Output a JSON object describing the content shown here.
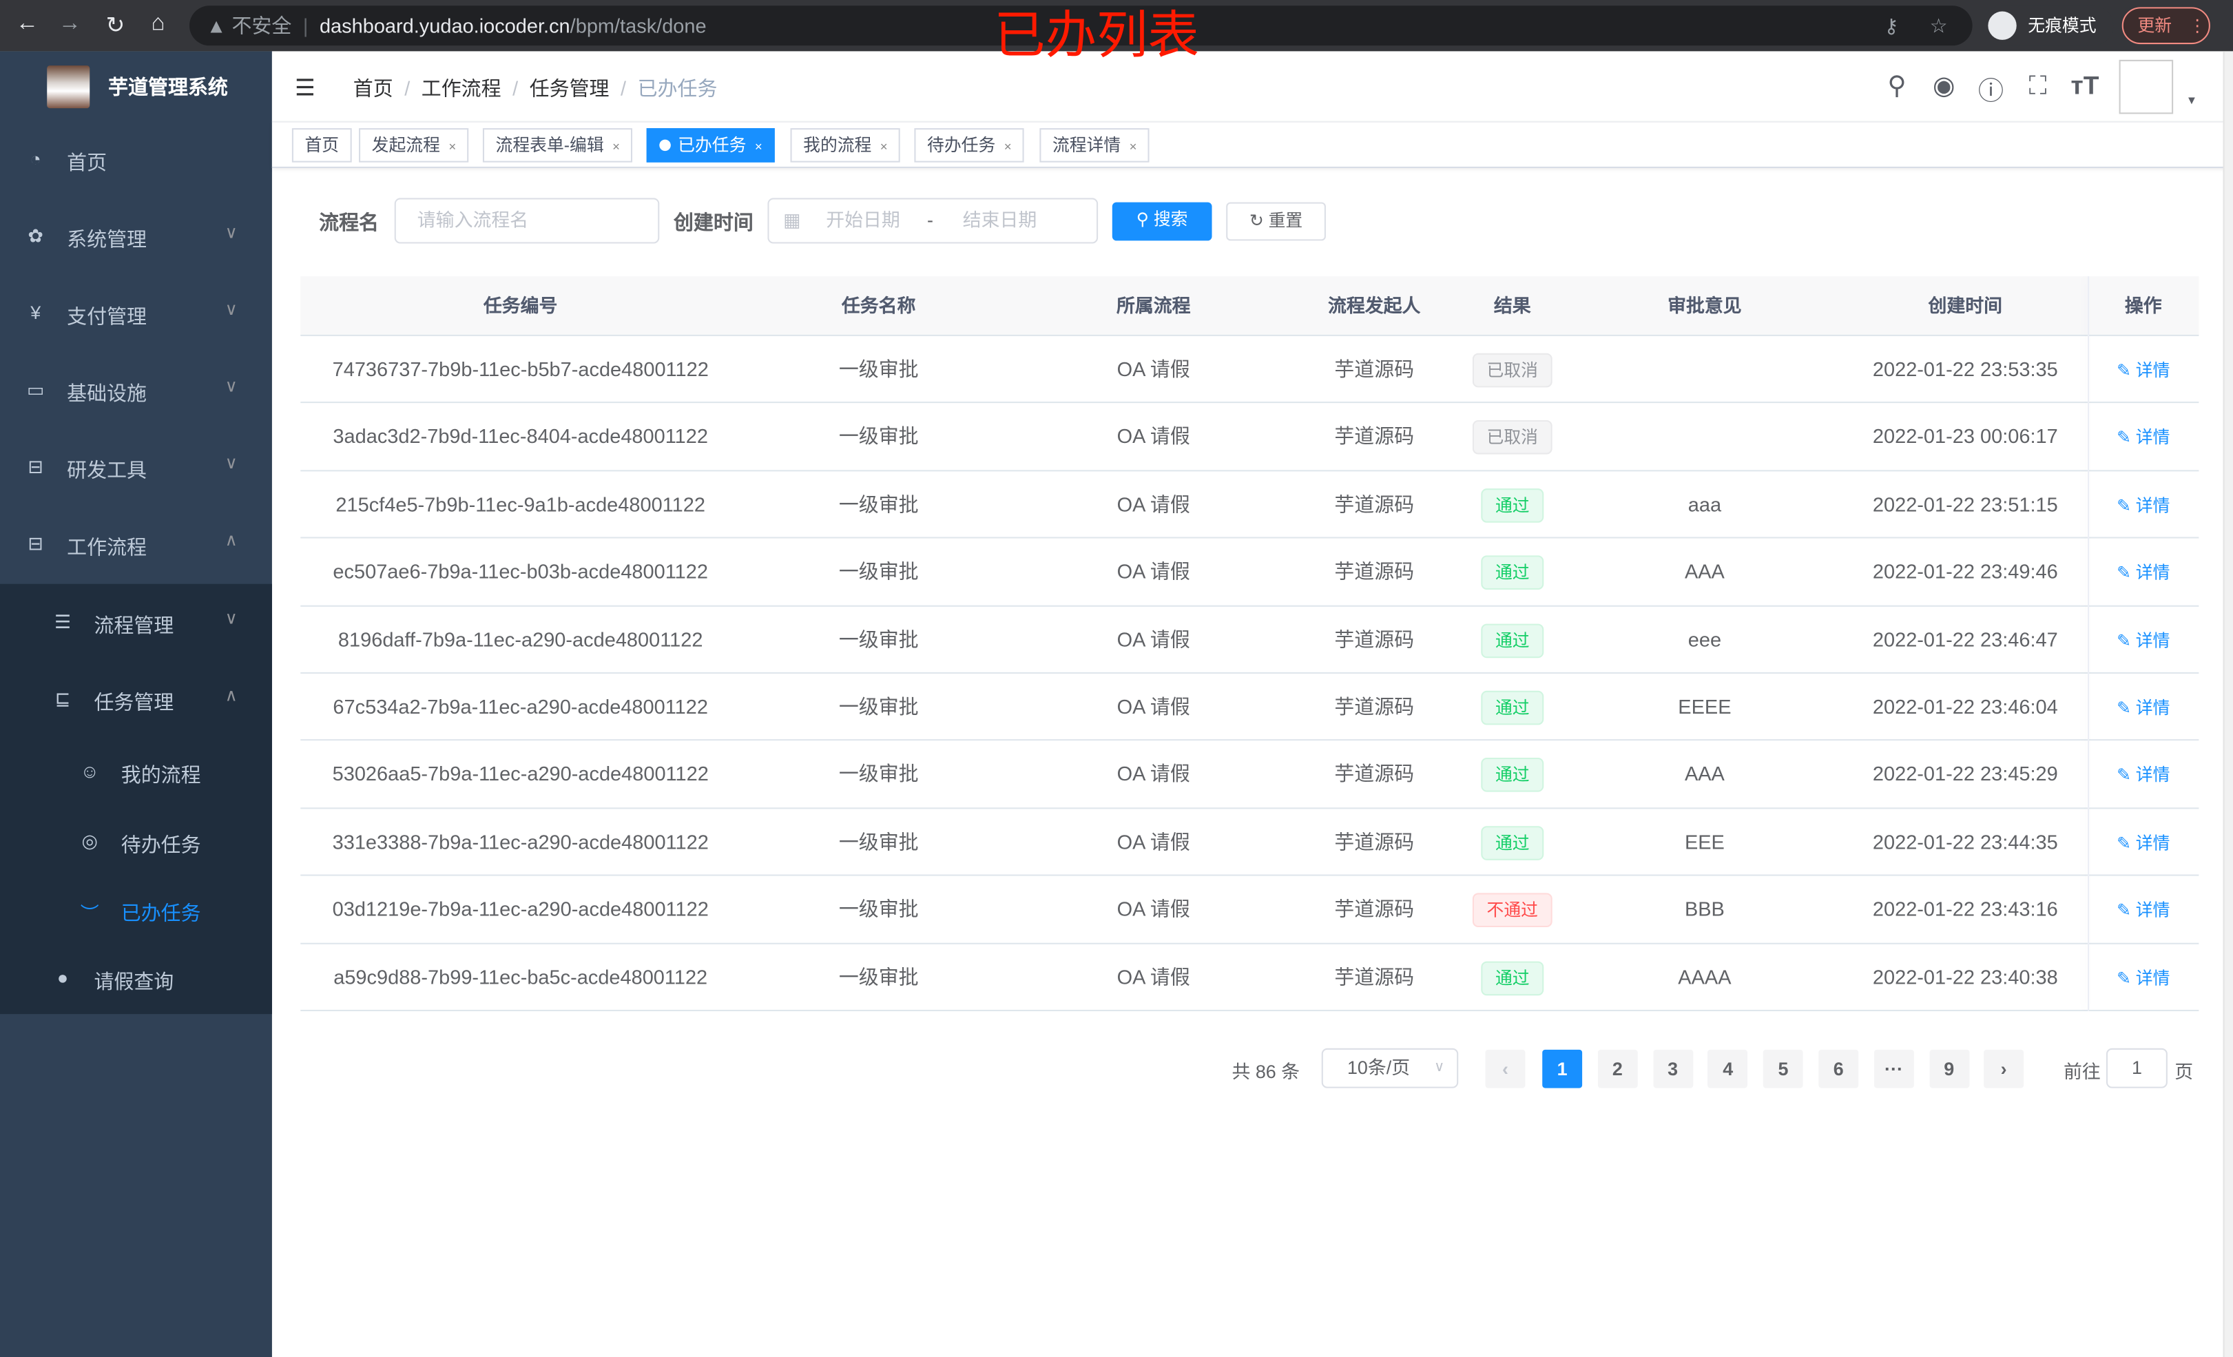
{
  "browser": {
    "insecure": "不安全",
    "url_host": "dashboard.yudao.iocoder.cn",
    "url_path": "/bpm/task/done",
    "incognito": "无痕模式",
    "update": "更新",
    "nav_icons": [
      "back-icon",
      "forward-icon",
      "reload-icon",
      "home-icon",
      "key-icon",
      "star-icon"
    ]
  },
  "annotation": "已办列表",
  "sidebar": {
    "title": "芋道管理系统",
    "items": [
      {
        "label": "首页",
        "icon": "dashboard-icon"
      },
      {
        "label": "系统管理",
        "icon": "gear-icon"
      },
      {
        "label": "支付管理",
        "icon": "yen-icon"
      },
      {
        "label": "基础设施",
        "icon": "monitor-icon"
      },
      {
        "label": "研发工具",
        "icon": "toolbox-icon"
      },
      {
        "label": "工作流程",
        "icon": "toolbox-icon"
      },
      {
        "label": "流程管理",
        "icon": "list-icon"
      },
      {
        "label": "任务管理",
        "icon": "task-icon"
      },
      {
        "label": "我的流程",
        "icon": "people-icon"
      },
      {
        "label": "待办任务",
        "icon": "eye-icon"
      },
      {
        "label": "已办任务",
        "icon": "eye-closed-icon",
        "active": true
      },
      {
        "label": "请假查询",
        "icon": "user-icon"
      }
    ]
  },
  "breadcrumb": [
    "首页",
    "工作流程",
    "任务管理",
    "已办任务"
  ],
  "tags": [
    {
      "label": "首页",
      "closable": false
    },
    {
      "label": "发起流程",
      "closable": true
    },
    {
      "label": "流程表单-编辑",
      "closable": true
    },
    {
      "label": "已办任务",
      "closable": true,
      "active": true
    },
    {
      "label": "我的流程",
      "closable": true
    },
    {
      "label": "待办任务",
      "closable": true
    },
    {
      "label": "流程详情",
      "closable": true
    }
  ],
  "search": {
    "name_label": "流程名",
    "name_placeholder": "请输入流程名",
    "time_label": "创建时间",
    "start_placeholder": "开始日期",
    "range_sep": "-",
    "end_placeholder": "结束日期",
    "search_btn": "搜索",
    "reset_btn": "重置"
  },
  "table": {
    "columns": [
      "任务编号",
      "任务名称",
      "所属流程",
      "流程发起人",
      "结果",
      "审批意见",
      "创建时间",
      "操作"
    ],
    "rows": [
      {
        "id": "74736737-7b9b-11ec-b5b7-acde48001122",
        "name": "一级审批",
        "process": "OA 请假",
        "starter": "芋道源码",
        "result": "已取消",
        "result_type": "cancel",
        "comment": "",
        "time": "2022-01-22 23:53:35",
        "op": "详情"
      },
      {
        "id": "3adac3d2-7b9d-11ec-8404-acde48001122",
        "name": "一级审批",
        "process": "OA 请假",
        "starter": "芋道源码",
        "result": "已取消",
        "result_type": "cancel",
        "comment": "",
        "time": "2022-01-23 00:06:17",
        "op": "详情"
      },
      {
        "id": "215cf4e5-7b9b-11ec-9a1b-acde48001122",
        "name": "一级审批",
        "process": "OA 请假",
        "starter": "芋道源码",
        "result": "通过",
        "result_type": "pass",
        "comment": "aaa",
        "time": "2022-01-22 23:51:15",
        "op": "详情"
      },
      {
        "id": "ec507ae6-7b9a-11ec-b03b-acde48001122",
        "name": "一级审批",
        "process": "OA 请假",
        "starter": "芋道源码",
        "result": "通过",
        "result_type": "pass",
        "comment": "AAA",
        "time": "2022-01-22 23:49:46",
        "op": "详情"
      },
      {
        "id": "8196daff-7b9a-11ec-a290-acde48001122",
        "name": "一级审批",
        "process": "OA 请假",
        "starter": "芋道源码",
        "result": "通过",
        "result_type": "pass",
        "comment": "eee",
        "time": "2022-01-22 23:46:47",
        "op": "详情"
      },
      {
        "id": "67c534a2-7b9a-11ec-a290-acde48001122",
        "name": "一级审批",
        "process": "OA 请假",
        "starter": "芋道源码",
        "result": "通过",
        "result_type": "pass",
        "comment": "EEEE",
        "time": "2022-01-22 23:46:04",
        "op": "详情"
      },
      {
        "id": "53026aa5-7b9a-11ec-a290-acde48001122",
        "name": "一级审批",
        "process": "OA 请假",
        "starter": "芋道源码",
        "result": "通过",
        "result_type": "pass",
        "comment": "AAA",
        "time": "2022-01-22 23:45:29",
        "op": "详情"
      },
      {
        "id": "331e3388-7b9a-11ec-a290-acde48001122",
        "name": "一级审批",
        "process": "OA 请假",
        "starter": "芋道源码",
        "result": "通过",
        "result_type": "pass",
        "comment": "EEE",
        "time": "2022-01-22 23:44:35",
        "op": "详情"
      },
      {
        "id": "03d1219e-7b9a-11ec-a290-acde48001122",
        "name": "一级审批",
        "process": "OA 请假",
        "starter": "芋道源码",
        "result": "不通过",
        "result_type": "reject",
        "comment": "BBB",
        "time": "2022-01-22 23:43:16",
        "op": "详情"
      },
      {
        "id": "a59c9d88-7b99-11ec-ba5c-acde48001122",
        "name": "一级审批",
        "process": "OA 请假",
        "starter": "芋道源码",
        "result": "通过",
        "result_type": "pass",
        "comment": "AAAA",
        "time": "2022-01-22 23:40:38",
        "op": "详情"
      }
    ]
  },
  "pagination": {
    "total": "共 86 条",
    "page_size": "10条/页",
    "pages": [
      "1",
      "2",
      "3",
      "4",
      "5",
      "6",
      "···",
      "9"
    ],
    "current": "1",
    "goto_label": "前往",
    "goto_value": "1",
    "page_suffix": "页"
  },
  "colors": {
    "primary": "#1890ff",
    "sidebar_bg": "#304156",
    "submenu_bg": "#1f2d3d",
    "pass": "#13ce66",
    "reject": "#ff4949",
    "annotation": "#ff1a00"
  }
}
